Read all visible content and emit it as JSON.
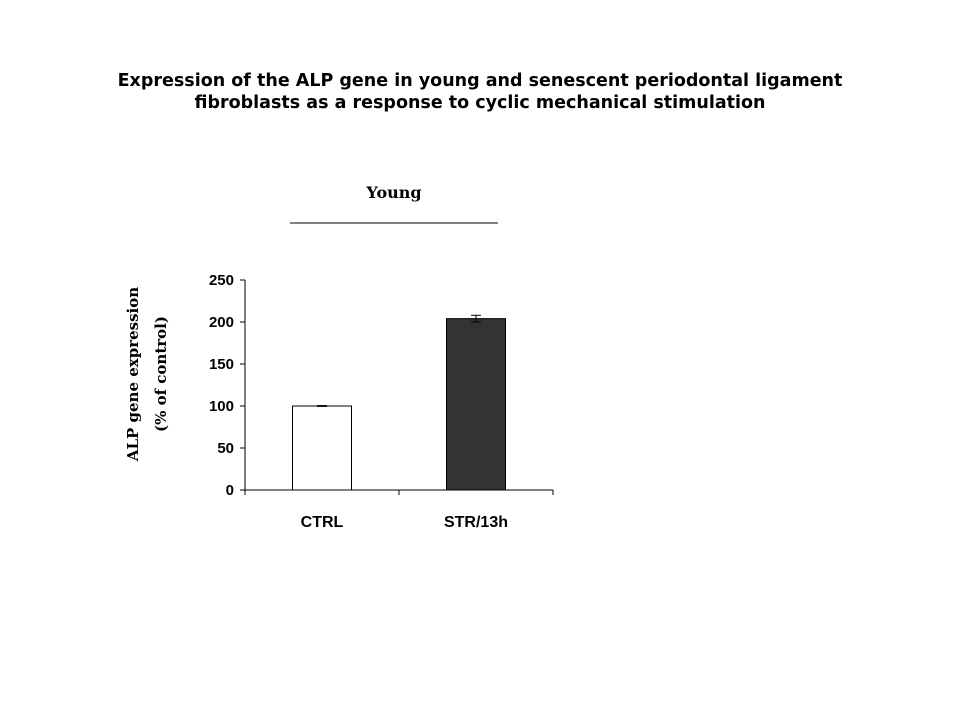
{
  "chart_data": {
    "type": "bar",
    "title": "Expression of the ALP gene in young and senescent periodontal ligament fibroblasts as a response to cyclic mechanical stimulation",
    "title_lines": [
      "Expression of the ALP gene in young and senescent periodontal ligament",
      "fibroblasts as a response to cyclic mechanical stimulation"
    ],
    "group_label": "Young",
    "ylabel": "ALP  gene expression (% of control)",
    "ylabel_lines": [
      "ALP  gene expression",
      "(% of control)"
    ],
    "xlabel": "",
    "categories": [
      "CTRL",
      "STR/13h"
    ],
    "values": [
      100,
      204
    ],
    "errors": [
      0.5,
      4
    ],
    "bar_colors": [
      "#ffffff",
      "#333333"
    ],
    "ylim": [
      0,
      250
    ],
    "yticks": [
      0,
      50,
      100,
      150,
      200,
      250
    ],
    "grid": false,
    "legend": "none"
  }
}
